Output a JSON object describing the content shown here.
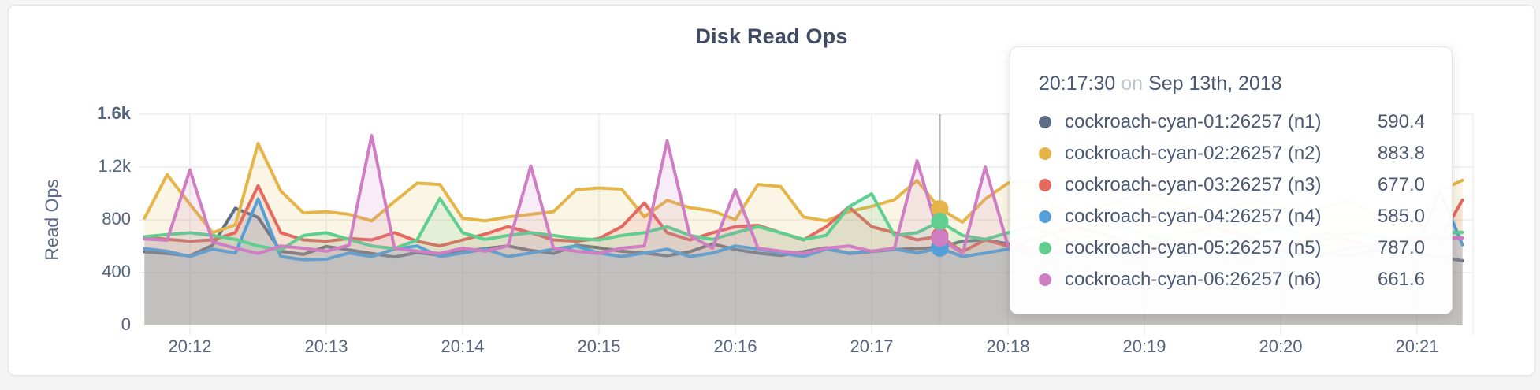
{
  "panel": {
    "title": "Disk Read Ops"
  },
  "colors": {
    "grid": "#ededed",
    "hover_line": "#b9b9b9",
    "axis_text": "#55657f",
    "tooltip_text": "#4a5872"
  },
  "chart_data": {
    "type": "area",
    "title": "Disk Read Ops",
    "xlabel": "",
    "ylabel": "Read Ops",
    "grid": true,
    "legend_position": "tooltip",
    "ylim": [
      0,
      1700
    ],
    "y_ticks": [
      0,
      400,
      800,
      1200,
      1600
    ],
    "y_tick_labels": [
      "0",
      "400",
      "800",
      "1.2k",
      "1.6k"
    ],
    "x_tick_labels": [
      "20:12",
      "20:13",
      "20:14",
      "20:15",
      "20:16",
      "20:17",
      "20:18",
      "20:19",
      "20:20",
      "20:21"
    ],
    "x_start_time": "20:11:40",
    "x_interval_seconds": 10,
    "hover_time": "20:17:30",
    "hover_index": 35,
    "series": [
      {
        "name": "cockroach-cyan-01:26257 (n1)",
        "color": "#5F6C87",
        "values": [
          558,
          545,
          528,
          608,
          888,
          818,
          562,
          538,
          598,
          572,
          545,
          518,
          552,
          532,
          560,
          582,
          602,
          568,
          545,
          608,
          588,
          562,
          548,
          528,
          558,
          618,
          575,
          548,
          530,
          558,
          588,
          545,
          560,
          575,
          582,
          590.4,
          638,
          648,
          618,
          578,
          545,
          558,
          530,
          545,
          560,
          572,
          545,
          530,
          558,
          545,
          568,
          558,
          545,
          530,
          558,
          588,
          545,
          518,
          490
        ]
      },
      {
        "name": "cockroach-cyan-02:26257 (n2)",
        "color": "#E5B54A",
        "values": [
          812,
          1142,
          918,
          702,
          762,
          1378,
          1018,
          852,
          862,
          842,
          792,
          938,
          1078,
          1068,
          812,
          792,
          822,
          842,
          862,
          1028,
          1042,
          1032,
          822,
          948,
          892,
          868,
          802,
          1068,
          1052,
          822,
          792,
          862,
          902,
          952,
          1098,
          883.8,
          782,
          958,
          1078,
          1098,
          902,
          848,
          902,
          948,
          1002,
          952,
          902,
          848,
          902,
          948,
          898,
          852,
          902,
          948,
          852,
          802,
          762,
          1020,
          1100
        ]
      },
      {
        "name": "cockroach-cyan-03:26257 (n3)",
        "color": "#E4695F",
        "values": [
          668,
          652,
          638,
          648,
          702,
          1058,
          702,
          648,
          638,
          658,
          648,
          702,
          638,
          602,
          648,
          692,
          748,
          702,
          648,
          638,
          658,
          748,
          928,
          702,
          648,
          702,
          748,
          758,
          702,
          648,
          748,
          898,
          748,
          702,
          648,
          677,
          558,
          648,
          602,
          648,
          702,
          748,
          702,
          648,
          602,
          648,
          702,
          748,
          702,
          648,
          602,
          648,
          702,
          648,
          602,
          648,
          693,
          650,
          950
        ]
      },
      {
        "name": "cockroach-cyan-04:26257 (n4)",
        "color": "#549FD7",
        "values": [
          582,
          562,
          522,
          578,
          548,
          958,
          522,
          498,
          502,
          548,
          522,
          578,
          602,
          522,
          548,
          578,
          522,
          548,
          578,
          602,
          548,
          522,
          548,
          578,
          522,
          548,
          602,
          578,
          548,
          522,
          578,
          548,
          562,
          578,
          548,
          585,
          522,
          548,
          578,
          548,
          522,
          578,
          548,
          522,
          548,
          578,
          548,
          522,
          578,
          548,
          522,
          578,
          548,
          522,
          578,
          602,
          578,
          1020,
          610
        ]
      },
      {
        "name": "cockroach-cyan-05:26257 (n5)",
        "color": "#5FCE8E",
        "values": [
          672,
          688,
          702,
          682,
          652,
          602,
          572,
          682,
          702,
          652,
          602,
          582,
          648,
          962,
          702,
          652,
          682,
          702,
          682,
          658,
          648,
          682,
          702,
          748,
          682,
          652,
          702,
          748,
          702,
          652,
          682,
          898,
          997,
          682,
          702,
          787,
          682,
          652,
          702,
          748,
          682,
          652,
          702,
          748,
          682,
          652,
          702,
          682,
          652,
          702,
          748,
          682,
          652,
          702,
          682,
          652,
          688,
          702,
          705
        ]
      },
      {
        "name": "cockroach-cyan-06:26257 (n6)",
        "color": "#CF7EC4",
        "values": [
          655,
          645,
          1178,
          632,
          585,
          545,
          602,
          585,
          562,
          608,
          1438,
          585,
          562,
          545,
          585,
          562,
          602,
          1208,
          585,
          562,
          545,
          585,
          602,
          1398,
          682,
          585,
          1028,
          585,
          562,
          545,
          585,
          602,
          562,
          585,
          1248,
          661.6,
          545,
          1200,
          602,
          562,
          545,
          585,
          602,
          562,
          545,
          585,
          602,
          562,
          545,
          585,
          602,
          562,
          545,
          585,
          602,
          662,
          658,
          662,
          663
        ]
      }
    ]
  },
  "tooltip": {
    "time": "20:17:30",
    "conjunction": "on",
    "date": "Sep 13th, 2018",
    "rows": [
      {
        "label": "cockroach-cyan-01:26257 (n1)",
        "value": "590.4",
        "color": "#5F6C87"
      },
      {
        "label": "cockroach-cyan-02:26257 (n2)",
        "value": "883.8",
        "color": "#E5B54A"
      },
      {
        "label": "cockroach-cyan-03:26257 (n3)",
        "value": "677.0",
        "color": "#E4695F"
      },
      {
        "label": "cockroach-cyan-04:26257 (n4)",
        "value": "585.0",
        "color": "#549FD7"
      },
      {
        "label": "cockroach-cyan-05:26257 (n5)",
        "value": "787.0",
        "color": "#5FCE8E"
      },
      {
        "label": "cockroach-cyan-06:26257 (n6)",
        "value": "661.6",
        "color": "#CF7EC4"
      }
    ]
  }
}
